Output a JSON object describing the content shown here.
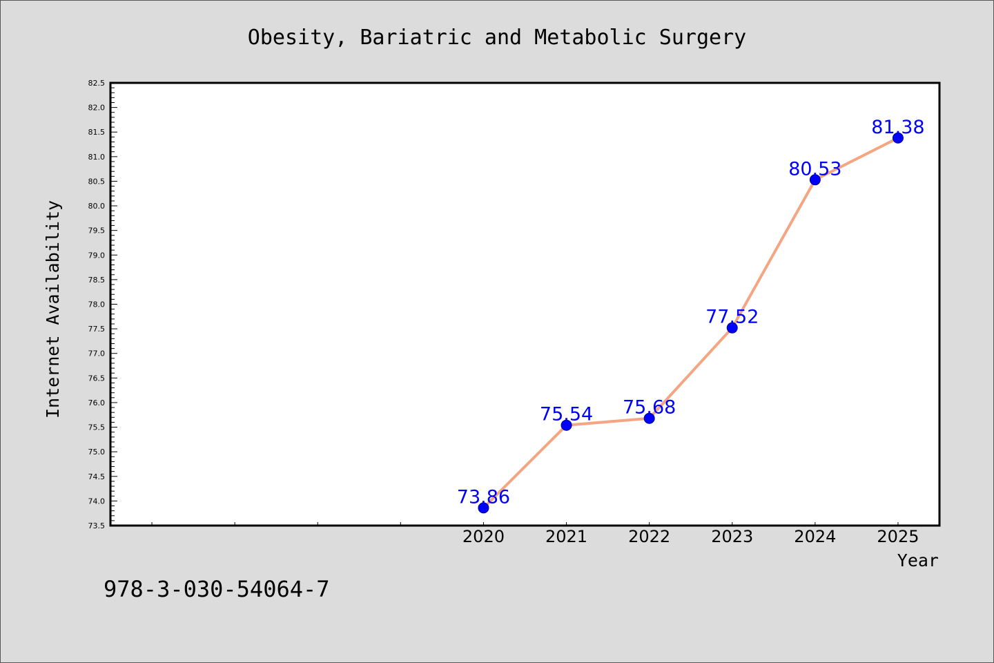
{
  "chart_data": {
    "type": "line",
    "title": "Obesity, Bariatric and Metabolic Surgery",
    "xlabel": "Year",
    "ylabel": "Internet Availability",
    "x": [
      2020,
      2021,
      2022,
      2023,
      2024,
      2025
    ],
    "series": [
      {
        "values": [
          73.86,
          75.54,
          75.68,
          77.52,
          80.53,
          81.38
        ]
      }
    ],
    "data_labels": [
      "73.86",
      "75.54",
      "75.68",
      "77.52",
      "80.53",
      "81.38"
    ],
    "x_tick_labels": [
      "2020",
      "2021",
      "2022",
      "2023",
      "2024",
      "2025"
    ],
    "xlim": [
      2015.5,
      2025.5
    ],
    "ylim": [
      73.5,
      82.5
    ],
    "y_tick_labels": [
      "73.5",
      "74.0",
      "74.5",
      "75.0",
      "75.5",
      "76.0",
      "76.5",
      "77.0",
      "77.5",
      "78.0",
      "78.5",
      "79.0",
      "79.5",
      "80.0",
      "80.5",
      "81.0",
      "81.5",
      "82.0",
      "82.5"
    ],
    "grid": false,
    "line_color": "#f4a582",
    "marker_color": "#0000ff",
    "label_color": "#0000ff",
    "background_color": "#dcdcdc",
    "plot_background_color": "#ffffff"
  },
  "footnote": "978-3-030-54064-7"
}
